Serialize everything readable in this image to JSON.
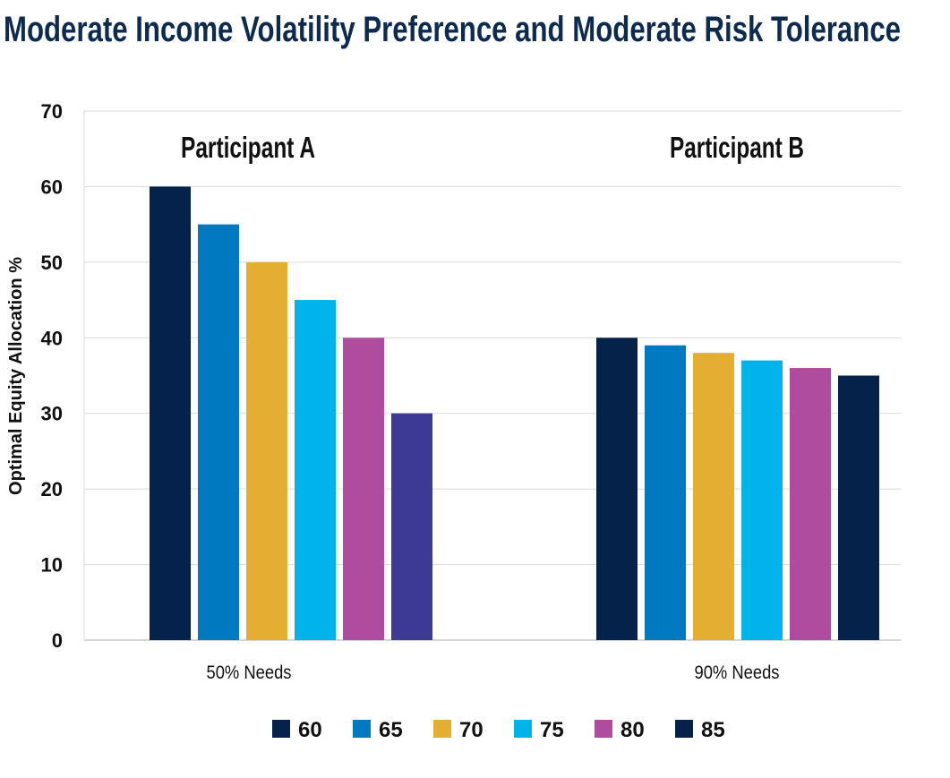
{
  "chart_data": {
    "type": "bar",
    "title": "Moderate Income Volatility Preference and Moderate Risk Tolerance",
    "ylabel": "Optimal Equity Allocation %",
    "xlabel": "",
    "ylim": [
      0,
      70
    ],
    "yticks": [
      "0",
      "10",
      "20",
      "30",
      "40",
      "50",
      "60",
      "70"
    ],
    "grid": true,
    "legend_position": "bottom",
    "categories": [
      "50% Needs",
      "90% Needs"
    ],
    "group_labels": [
      "Participant A",
      "Participant B"
    ],
    "series": [
      {
        "name": "60",
        "color": "#04224a",
        "values": [
          60,
          40
        ]
      },
      {
        "name": "65",
        "color": "#0079c1",
        "values": [
          55,
          39
        ]
      },
      {
        "name": "70",
        "color": "#e3ae32",
        "values": [
          50,
          38
        ]
      },
      {
        "name": "75",
        "color": "#00b3eb",
        "values": [
          45,
          37
        ]
      },
      {
        "name": "80",
        "color": "#b04c9d",
        "values": [
          40,
          36
        ]
      },
      {
        "name": "85",
        "color": "#04224a",
        "values": [
          30,
          35
        ]
      }
    ],
    "bar_colors_by_category": [
      [
        "#04224a",
        "#0079c1",
        "#e3ae32",
        "#00b3eb",
        "#b04c9d",
        "#3d3a95"
      ],
      [
        "#04224a",
        "#0079c1",
        "#e3ae32",
        "#00b3eb",
        "#b04c9d",
        "#04224a"
      ]
    ]
  }
}
